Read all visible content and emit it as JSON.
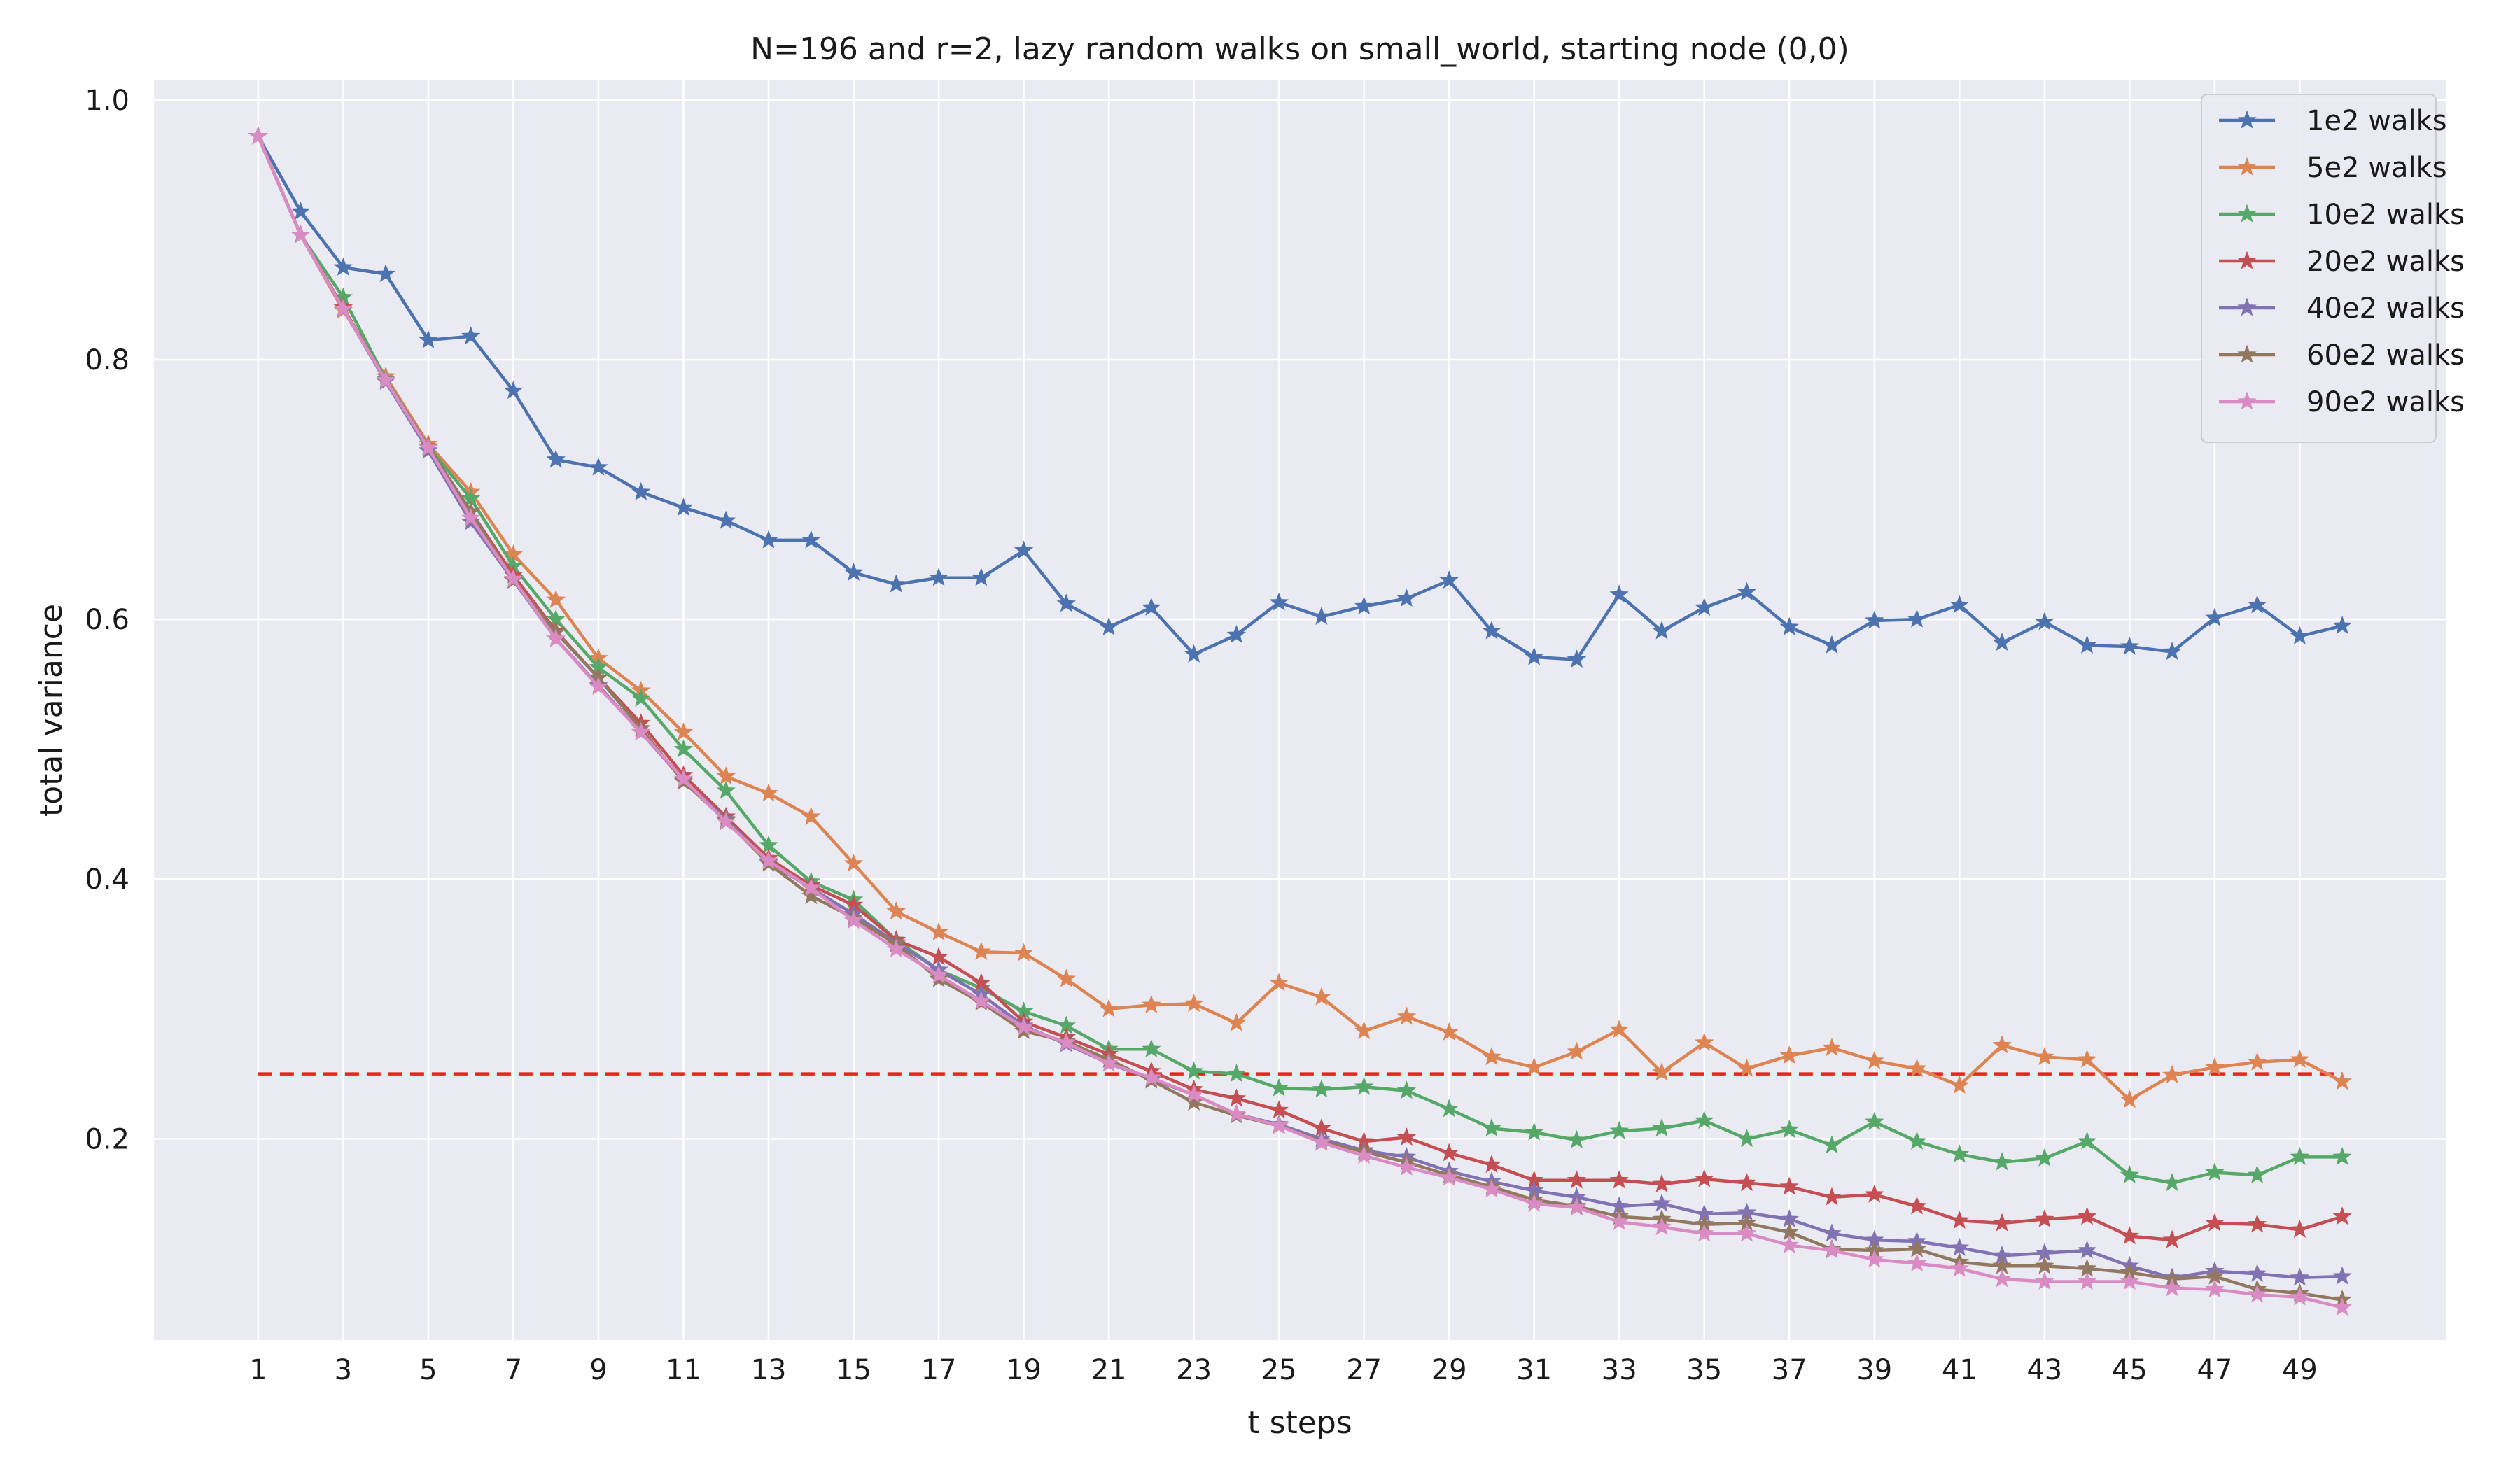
{
  "chart_data": {
    "type": "line",
    "title": "N=196 and r=2, lazy random walks on small_world, starting node (0,0)",
    "xlabel": "t steps",
    "ylabel": "total variance",
    "xlim": [
      -1.45,
      52.45
    ],
    "ylim": [
      0.045,
      1.015
    ],
    "x_ticks": [
      "1",
      "3",
      "5",
      "7",
      "9",
      "11",
      "13",
      "15",
      "17",
      "19",
      "21",
      "23",
      "25",
      "27",
      "29",
      "31",
      "33",
      "35",
      "37",
      "39",
      "41",
      "43",
      "45",
      "47",
      "49"
    ],
    "y_ticks": [
      "0.2",
      "0.4",
      "0.6",
      "0.8",
      "1.0"
    ],
    "grid": true,
    "legend_position": "top-right",
    "marker": "star",
    "reference_line": {
      "y": 0.25,
      "style": "dashed",
      "color": "#e8241c",
      "x_start": 1,
      "x_end": 50
    },
    "x": [
      1,
      2,
      3,
      4,
      5,
      6,
      7,
      8,
      9,
      10,
      11,
      12,
      13,
      14,
      15,
      16,
      17,
      18,
      19,
      20,
      21,
      22,
      23,
      24,
      25,
      26,
      27,
      28,
      29,
      30,
      31,
      32,
      33,
      34,
      35,
      36,
      37,
      38,
      39,
      40,
      41,
      42,
      43,
      44,
      45,
      46,
      47,
      48,
      49,
      50
    ],
    "series": [
      {
        "name": "1e2 walks",
        "color": "#4c72b0",
        "values": [
          0.972,
          0.914,
          0.871,
          0.866,
          0.815,
          0.818,
          0.776,
          0.723,
          0.717,
          0.698,
          0.686,
          0.676,
          0.661,
          0.661,
          0.636,
          0.627,
          0.632,
          0.632,
          0.653,
          0.612,
          0.594,
          0.609,
          0.573,
          0.588,
          0.613,
          0.602,
          0.61,
          0.616,
          0.63,
          0.591,
          0.571,
          0.569,
          0.619,
          0.591,
          0.609,
          0.621,
          0.594,
          0.58,
          0.599,
          0.6,
          0.611,
          0.582,
          0.598,
          0.58,
          0.579,
          0.575,
          0.601,
          0.611,
          0.587,
          0.595
        ]
      },
      {
        "name": "5e2 walks",
        "color": "#dd8452",
        "values": [
          0.972,
          0.896,
          0.838,
          0.787,
          0.735,
          0.698,
          0.65,
          0.615,
          0.57,
          0.545,
          0.513,
          0.479,
          0.466,
          0.448,
          0.412,
          0.375,
          0.359,
          0.344,
          0.343,
          0.323,
          0.3,
          0.303,
          0.304,
          0.289,
          0.32,
          0.309,
          0.283,
          0.294,
          0.282,
          0.263,
          0.255,
          0.267,
          0.284,
          0.251,
          0.274,
          0.254,
          0.264,
          0.27,
          0.26,
          0.254,
          0.241,
          0.272,
          0.263,
          0.261,
          0.23,
          0.249,
          0.255,
          0.259,
          0.261,
          0.244
        ]
      },
      {
        "name": "10e2 walks",
        "color": "#55a868",
        "values": [
          0.972,
          0.896,
          0.848,
          0.785,
          0.733,
          0.693,
          0.641,
          0.6,
          0.563,
          0.539,
          0.5,
          0.468,
          0.426,
          0.398,
          0.384,
          0.353,
          0.33,
          0.316,
          0.298,
          0.287,
          0.269,
          0.269,
          0.252,
          0.25,
          0.239,
          0.238,
          0.24,
          0.237,
          0.223,
          0.208,
          0.205,
          0.199,
          0.206,
          0.208,
          0.214,
          0.2,
          0.207,
          0.195,
          0.213,
          0.198,
          0.188,
          0.182,
          0.185,
          0.198,
          0.172,
          0.166,
          0.174,
          0.172,
          0.186,
          0.186
        ]
      },
      {
        "name": "20e2 walks",
        "color": "#c44e52",
        "values": [
          0.972,
          0.896,
          0.84,
          0.784,
          0.732,
          0.683,
          0.634,
          0.591,
          0.555,
          0.52,
          0.48,
          0.448,
          0.416,
          0.395,
          0.38,
          0.353,
          0.34,
          0.32,
          0.29,
          0.278,
          0.265,
          0.252,
          0.238,
          0.231,
          0.222,
          0.208,
          0.198,
          0.201,
          0.189,
          0.18,
          0.168,
          0.168,
          0.168,
          0.165,
          0.169,
          0.166,
          0.163,
          0.155,
          0.157,
          0.148,
          0.137,
          0.135,
          0.138,
          0.14,
          0.125,
          0.122,
          0.135,
          0.134,
          0.13,
          0.14
        ]
      },
      {
        "name": "40e2 walks",
        "color": "#8172b3",
        "values": [
          0.972,
          0.896,
          0.839,
          0.783,
          0.73,
          0.675,
          0.63,
          0.585,
          0.549,
          0.513,
          0.476,
          0.446,
          0.413,
          0.393,
          0.373,
          0.351,
          0.33,
          0.311,
          0.287,
          0.273,
          0.258,
          0.246,
          0.234,
          0.219,
          0.211,
          0.2,
          0.191,
          0.186,
          0.175,
          0.167,
          0.16,
          0.155,
          0.148,
          0.15,
          0.142,
          0.143,
          0.138,
          0.127,
          0.122,
          0.121,
          0.116,
          0.11,
          0.112,
          0.114,
          0.102,
          0.093,
          0.098,
          0.096,
          0.093,
          0.094
        ]
      },
      {
        "name": "60e2 walks",
        "color": "#937860",
        "values": [
          0.972,
          0.896,
          0.839,
          0.784,
          0.733,
          0.683,
          0.63,
          0.59,
          0.555,
          0.516,
          0.475,
          0.445,
          0.412,
          0.387,
          0.37,
          0.35,
          0.323,
          0.305,
          0.283,
          0.275,
          0.261,
          0.245,
          0.228,
          0.218,
          0.21,
          0.198,
          0.19,
          0.182,
          0.172,
          0.163,
          0.153,
          0.148,
          0.14,
          0.138,
          0.134,
          0.135,
          0.128,
          0.115,
          0.114,
          0.115,
          0.105,
          0.102,
          0.102,
          0.1,
          0.097,
          0.092,
          0.094,
          0.084,
          0.081,
          0.076
        ]
      },
      {
        "name": "90e2 walks",
        "color": "#da8bc3",
        "values": [
          0.972,
          0.896,
          0.839,
          0.784,
          0.732,
          0.678,
          0.631,
          0.585,
          0.548,
          0.513,
          0.477,
          0.444,
          0.414,
          0.393,
          0.368,
          0.346,
          0.326,
          0.306,
          0.286,
          0.274,
          0.258,
          0.247,
          0.234,
          0.219,
          0.21,
          0.197,
          0.187,
          0.178,
          0.17,
          0.161,
          0.15,
          0.147,
          0.136,
          0.132,
          0.127,
          0.127,
          0.118,
          0.114,
          0.107,
          0.104,
          0.1,
          0.092,
          0.09,
          0.09,
          0.09,
          0.085,
          0.084,
          0.08,
          0.078,
          0.07
        ]
      }
    ]
  }
}
